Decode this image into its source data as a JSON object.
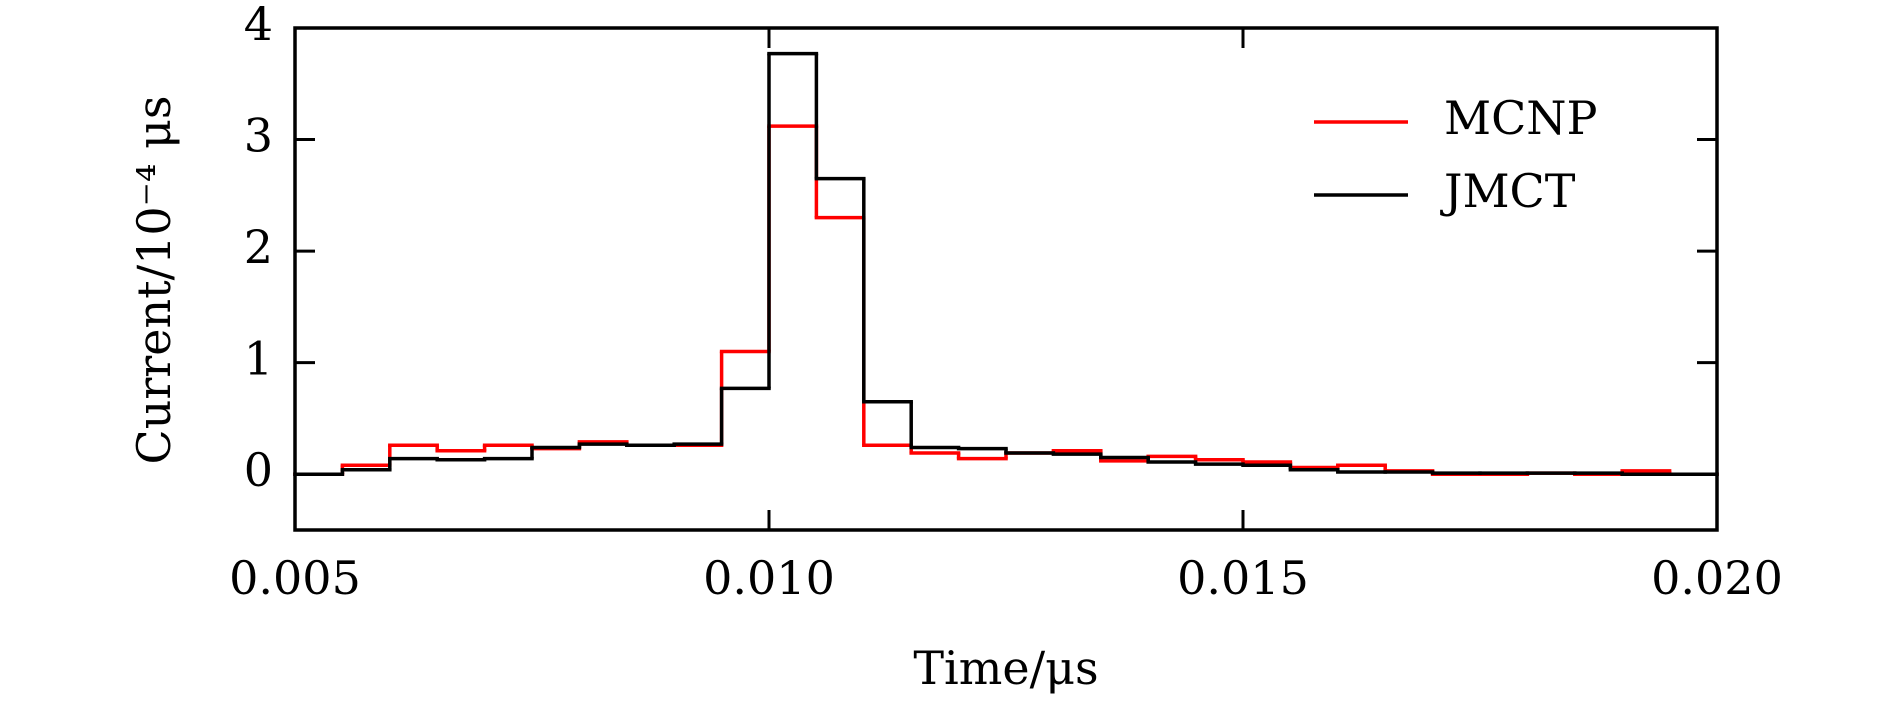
{
  "chart_data": {
    "type": "histogram",
    "xlabel": "Time/μs",
    "ylabel": "Current/10⁻⁴ μs",
    "bins": [
      0.005,
      0.0055,
      0.006,
      0.0065,
      0.007,
      0.0075,
      0.008,
      0.0085,
      0.009,
      0.0095,
      0.01,
      0.0105,
      0.011,
      0.0115,
      0.012,
      0.0125,
      0.013,
      0.0135,
      0.014,
      0.0145,
      0.015,
      0.0155,
      0.016,
      0.0165,
      0.017,
      0.0175,
      0.018,
      0.0185,
      0.019,
      0.0195,
      0.02
    ],
    "series": [
      {
        "name": "MCNP",
        "color": "#ff0000",
        "values": [
          0,
          0.08,
          0.26,
          0.21,
          0.26,
          0.23,
          0.29,
          0.26,
          0.26,
          1.1,
          3.12,
          2.3,
          0.26,
          0.19,
          0.14,
          0.19,
          0.21,
          0.12,
          0.16,
          0.13,
          0.11,
          0.06,
          0.08,
          0.03,
          0,
          0,
          0.01,
          0,
          0.03,
          0
        ]
      },
      {
        "name": "JMCT",
        "color": "#000000",
        "values": [
          0,
          0.04,
          0.14,
          0.13,
          0.14,
          0.24,
          0.27,
          0.26,
          0.27,
          0.77,
          3.77,
          2.65,
          0.65,
          0.24,
          0.23,
          0.19,
          0.18,
          0.15,
          0.11,
          0.09,
          0.08,
          0.04,
          0.02,
          0.02,
          0.01,
          0.01,
          0.01,
          0.01,
          0,
          0
        ]
      }
    ],
    "xlim": [
      0.005,
      0.02
    ],
    "xticks": [
      0.005,
      {
        "value": 0.01,
        "label": "0.010"
      },
      0.015,
      {
        "value": 0.02,
        "label": "0.020"
      }
    ],
    "ylim": [
      -0.5,
      4
    ],
    "yticks": [
      0,
      1,
      2,
      3,
      4
    ],
    "legend": "upper right",
    "grid": false
  }
}
